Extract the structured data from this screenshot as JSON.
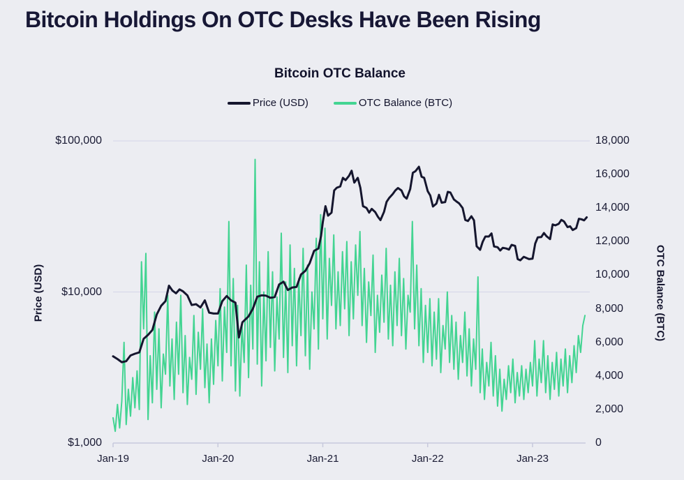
{
  "page": {
    "title": "Bitcoin Holdings On OTC Desks Have Been Rising"
  },
  "colors": {
    "background": "#ecedf2",
    "title_text": "#171735",
    "price_line": "#15162e",
    "otc_line": "#43d492",
    "gridline": "#d3d5e8",
    "axis_line": "#c7c9dc",
    "tick_text": "#1a1b34"
  },
  "chart_data": {
    "type": "line",
    "title": "Bitcoin OTC Balance",
    "legend_position": "top-center",
    "grid": "horizontal-only",
    "x_axis": {
      "unit": "months since Jan-2019",
      "range": [
        0,
        54.2
      ],
      "ticks": [
        {
          "t": 0,
          "label": "Jan-19"
        },
        {
          "t": 12,
          "label": "Jan-20"
        },
        {
          "t": 24,
          "label": "Jan-21"
        },
        {
          "t": 36,
          "label": "Jan-22"
        },
        {
          "t": 48,
          "label": "Jan-23"
        }
      ]
    },
    "left_axis": {
      "label": "Price (USD)",
      "scale": "log",
      "range": [
        1000,
        100000
      ],
      "ticks": [
        {
          "v": 100000,
          "label": "$100,000",
          "grid": true
        },
        {
          "v": 10000,
          "label": "$10,000",
          "grid": true
        },
        {
          "v": 1000,
          "label": "$1,000",
          "grid": false
        }
      ]
    },
    "right_axis": {
      "label": "OTC Balance (BTC)",
      "scale": "linear",
      "range": [
        0,
        18000
      ],
      "ticks": [
        {
          "v": 0,
          "label": "0"
        },
        {
          "v": 2000,
          "label": "2,000"
        },
        {
          "v": 4000,
          "label": "4,000"
        },
        {
          "v": 6000,
          "label": "6,000"
        },
        {
          "v": 8000,
          "label": "8,000"
        },
        {
          "v": 10000,
          "label": "10,000"
        },
        {
          "v": 12000,
          "label": "12,000"
        },
        {
          "v": 14000,
          "label": "14,000"
        },
        {
          "v": 16000,
          "label": "16,000"
        },
        {
          "v": 18000,
          "label": "18,000"
        }
      ]
    },
    "series": [
      {
        "name": "OTC Balance (BTC)",
        "axis": "right",
        "color": "#43d492",
        "stroke_width": 2,
        "t0": 0,
        "dt": 0.25,
        "values": [
          1500,
          700,
          2300,
          900,
          2500,
          6000,
          1100,
          3200,
          1600,
          3900,
          2100,
          4300,
          2000,
          10800,
          6800,
          11300,
          1400,
          5200,
          2400,
          7800,
          3200,
          6800,
          2100,
          5300,
          4100,
          8800,
          3400,
          6200,
          2600,
          7200,
          4100,
          8800,
          3000,
          6400,
          2300,
          5100,
          3800,
          7600,
          2900,
          6600,
          4400,
          8000,
          3300,
          5900,
          2400,
          6200,
          3500,
          7300,
          4600,
          9200,
          3700,
          8100,
          5400,
          13200,
          4600,
          9800,
          3100,
          8200,
          2800,
          7000,
          4800,
          10600,
          3900,
          9400,
          5600,
          16900,
          4700,
          10800,
          3400,
          9000,
          4900,
          11400,
          5700,
          10200,
          4300,
          8700,
          6200,
          12500,
          5100,
          9600,
          4200,
          11800,
          5800,
          10400,
          4600,
          9800,
          6400,
          11600,
          5200,
          10600,
          4400,
          9000,
          6800,
          12200,
          5600,
          13600,
          7400,
          12800,
          6200,
          11000,
          8200,
          12400,
          6800,
          10200,
          7000,
          11400,
          8000,
          12000,
          6400,
          10800,
          7400,
          11800,
          8800,
          12600,
          7000,
          10400,
          6000,
          9600,
          7600,
          11200,
          5400,
          8800,
          6600,
          10000,
          7200,
          11600,
          6200,
          9400,
          5800,
          10200,
          7000,
          11000,
          6400,
          9800,
          5600,
          8800,
          7800,
          13200,
          6800,
          10600,
          5800,
          9200,
          4800,
          8200,
          5400,
          8600,
          4600,
          7800,
          5000,
          8600,
          4200,
          7000,
          5600,
          9000,
          4800,
          7600,
          4400,
          7200,
          3800,
          6400,
          4800,
          7800,
          4000,
          6800,
          3400,
          6200,
          4400,
          9900,
          3000,
          5600,
          2600,
          4800,
          3400,
          6000,
          2800,
          5200,
          2200,
          4400,
          1900,
          3800,
          2600,
          4600,
          3000,
          5000,
          2400,
          4200,
          2800,
          4600,
          2600,
          4400,
          3000,
          4800,
          3400,
          6100,
          2800,
          5000,
          3600,
          6100,
          3000,
          5200,
          2600,
          4800,
          3200,
          5400,
          2800,
          5000,
          3400,
          5600,
          3000,
          5200,
          3600,
          5800,
          4200,
          6400,
          5400,
          7000,
          7600
        ]
      },
      {
        "name": "Price (USD)",
        "axis": "left",
        "color": "#15162e",
        "stroke_width": 3,
        "points": [
          [
            0,
            3750
          ],
          [
            0.5,
            3600
          ],
          [
            1,
            3430
          ],
          [
            1.5,
            3480
          ],
          [
            2,
            3800
          ],
          [
            2.5,
            3900
          ],
          [
            3,
            3980
          ],
          [
            3.5,
            4900
          ],
          [
            4,
            5200
          ],
          [
            4.5,
            5600
          ],
          [
            5,
            7100
          ],
          [
            5.5,
            8100
          ],
          [
            6,
            8700
          ],
          [
            6.4,
            11000
          ],
          [
            6.8,
            10200
          ],
          [
            7.2,
            9800
          ],
          [
            7.6,
            10400
          ],
          [
            8,
            10100
          ],
          [
            8.5,
            9500
          ],
          [
            9,
            8200
          ],
          [
            9.5,
            8300
          ],
          [
            10,
            7900
          ],
          [
            10.5,
            8800
          ],
          [
            11,
            7300
          ],
          [
            11.5,
            7200
          ],
          [
            12,
            7200
          ],
          [
            12.5,
            8700
          ],
          [
            13,
            9400
          ],
          [
            13.5,
            8800
          ],
          [
            14,
            8500
          ],
          [
            14.4,
            5000
          ],
          [
            14.8,
            6300
          ],
          [
            15.5,
            6900
          ],
          [
            16,
            7750
          ],
          [
            16.5,
            9300
          ],
          [
            17,
            9500
          ],
          [
            17.5,
            9450
          ],
          [
            18,
            9150
          ],
          [
            18.5,
            9250
          ],
          [
            19,
            11200
          ],
          [
            19.5,
            11700
          ],
          [
            20,
            10300
          ],
          [
            20.5,
            10700
          ],
          [
            21,
            10800
          ],
          [
            21.5,
            13050
          ],
          [
            22,
            13800
          ],
          [
            22.5,
            15500
          ],
          [
            23,
            18700
          ],
          [
            23.5,
            19400
          ],
          [
            23.8,
            23500
          ],
          [
            24,
            29000
          ],
          [
            24.3,
            37000
          ],
          [
            24.6,
            32000
          ],
          [
            25,
            33500
          ],
          [
            25.3,
            47000
          ],
          [
            25.6,
            49000
          ],
          [
            26,
            50000
          ],
          [
            26.3,
            57000
          ],
          [
            26.6,
            55000
          ],
          [
            27,
            58800
          ],
          [
            27.3,
            63500
          ],
          [
            27.6,
            53000
          ],
          [
            28,
            57000
          ],
          [
            28.3,
            49000
          ],
          [
            28.6,
            37000
          ],
          [
            29,
            36000
          ],
          [
            29.3,
            33500
          ],
          [
            29.6,
            35500
          ],
          [
            30,
            33800
          ],
          [
            30.3,
            31500
          ],
          [
            30.6,
            29900
          ],
          [
            31,
            33900
          ],
          [
            31.3,
            39500
          ],
          [
            31.6,
            42000
          ],
          [
            32,
            44500
          ],
          [
            32.3,
            47000
          ],
          [
            32.6,
            48800
          ],
          [
            33,
            47000
          ],
          [
            33.3,
            43000
          ],
          [
            33.6,
            41500
          ],
          [
            34,
            48000
          ],
          [
            34.3,
            61500
          ],
          [
            34.6,
            63000
          ],
          [
            35,
            67500
          ],
          [
            35.3,
            58000
          ],
          [
            35.6,
            57000
          ],
          [
            36,
            46500
          ],
          [
            36.3,
            43500
          ],
          [
            36.6,
            36800
          ],
          [
            37,
            38500
          ],
          [
            37.3,
            44000
          ],
          [
            37.6,
            39000
          ],
          [
            38,
            39400
          ],
          [
            38.3,
            46000
          ],
          [
            38.6,
            45500
          ],
          [
            39,
            41000
          ],
          [
            39.3,
            39700
          ],
          [
            39.6,
            38600
          ],
          [
            40,
            36000
          ],
          [
            40.3,
            30000
          ],
          [
            40.6,
            29500
          ],
          [
            41,
            31700
          ],
          [
            41.3,
            29800
          ],
          [
            41.6,
            20100
          ],
          [
            42,
            19000
          ],
          [
            42.3,
            21500
          ],
          [
            42.6,
            23300
          ],
          [
            43,
            23300
          ],
          [
            43.3,
            24400
          ],
          [
            43.6,
            20000
          ],
          [
            44,
            19800
          ],
          [
            44.3,
            18800
          ],
          [
            44.6,
            19600
          ],
          [
            45,
            19400
          ],
          [
            45.3,
            19100
          ],
          [
            45.6,
            20500
          ],
          [
            46,
            20200
          ],
          [
            46.3,
            16500
          ],
          [
            46.6,
            16200
          ],
          [
            47,
            17100
          ],
          [
            47.3,
            16800
          ],
          [
            47.6,
            16500
          ],
          [
            48,
            16600
          ],
          [
            48.3,
            20900
          ],
          [
            48.6,
            23000
          ],
          [
            49,
            23100
          ],
          [
            49.3,
            24600
          ],
          [
            49.6,
            23400
          ],
          [
            50,
            22400
          ],
          [
            50.3,
            28000
          ],
          [
            50.6,
            27600
          ],
          [
            51,
            28300
          ],
          [
            51.3,
            30000
          ],
          [
            51.6,
            29300
          ],
          [
            52,
            26900
          ],
          [
            52.3,
            27200
          ],
          [
            52.6,
            25700
          ],
          [
            53,
            26500
          ],
          [
            53.3,
            30500
          ],
          [
            53.6,
            30300
          ],
          [
            53.9,
            29800
          ],
          [
            54.2,
            31200
          ]
        ]
      }
    ]
  }
}
